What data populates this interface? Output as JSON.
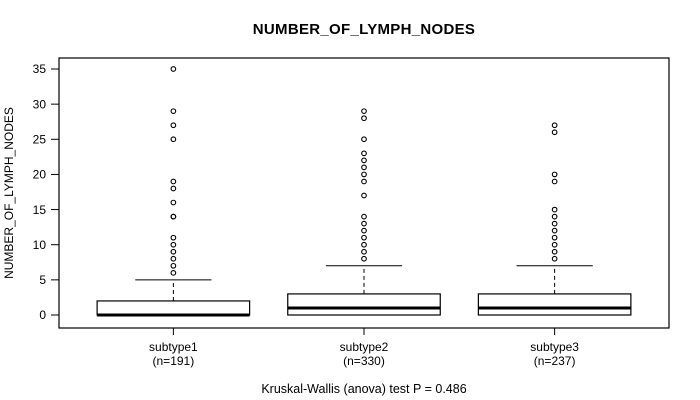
{
  "chart_data": {
    "type": "boxplot",
    "title": "NUMBER_OF_LYMPH_NODES",
    "ylabel": "NUMBER_OF_LYMPH_NODES",
    "xlabel": "",
    "ylim": [
      0,
      35
    ],
    "yticks": [
      0,
      5,
      10,
      15,
      20,
      25,
      30,
      35
    ],
    "grid": false,
    "caption": "Kruskal-Wallis (anova) test P = 0.486",
    "groups": [
      {
        "label": "subtype1",
        "sublabel": "(n=191)",
        "n": 191,
        "whisker_low": 0,
        "q1": 0,
        "median": 0,
        "q3": 2,
        "whisker_high": 5,
        "outliers": [
          6,
          7,
          8,
          9,
          10,
          11,
          14,
          14,
          16,
          18,
          19,
          25,
          27,
          29,
          35
        ]
      },
      {
        "label": "subtype2",
        "sublabel": "(n=330)",
        "n": 330,
        "whisker_low": 0,
        "q1": 0,
        "median": 1,
        "q3": 3,
        "whisker_high": 7,
        "outliers": [
          8,
          9,
          10,
          11,
          12,
          13,
          14,
          17,
          19,
          20,
          21,
          22,
          23,
          25,
          28,
          29
        ]
      },
      {
        "label": "subtype3",
        "sublabel": "(n=237)",
        "n": 237,
        "whisker_low": 0,
        "q1": 0,
        "median": 1,
        "q3": 3,
        "whisker_high": 7,
        "outliers": [
          8,
          9,
          10,
          11,
          12,
          13,
          14,
          15,
          19,
          20,
          26,
          27
        ]
      }
    ],
    "colors": {
      "stroke": "#000000",
      "box_fill": "#ffffff",
      "background": "#ffffff"
    }
  }
}
